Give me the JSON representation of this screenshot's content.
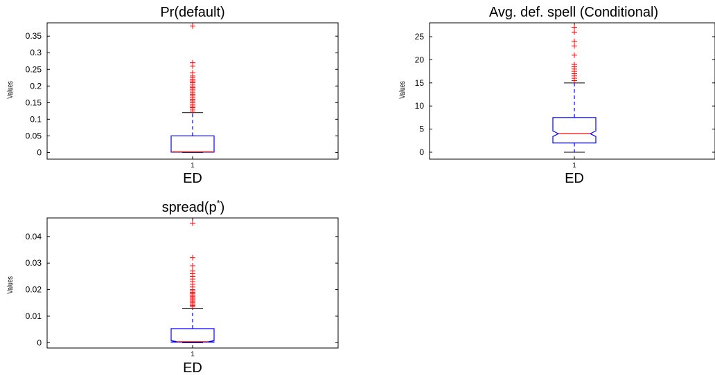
{
  "chart_data": [
    {
      "type": "box",
      "title": "Pr(default)",
      "ylabel": "Values",
      "xlabel": "ED",
      "categories": [
        "1"
      ],
      "ylim": [
        -0.02,
        0.39
      ],
      "yticks": [
        0,
        0.05,
        0.1,
        0.15,
        0.2,
        0.25,
        0.3,
        0.35
      ],
      "ytick_labels": [
        "0",
        "0.05",
        "0.1",
        "0.15",
        "0.2",
        "0.25",
        "0.3",
        "0.35"
      ],
      "notched": false,
      "box": {
        "whisker_low": 0,
        "q1": 0.001,
        "median": 0.002,
        "q3": 0.05,
        "whisker_high": 0.12
      },
      "outliers": [
        0.125,
        0.13,
        0.135,
        0.14,
        0.145,
        0.15,
        0.155,
        0.16,
        0.165,
        0.17,
        0.175,
        0.18,
        0.185,
        0.19,
        0.195,
        0.2,
        0.205,
        0.21,
        0.215,
        0.22,
        0.225,
        0.23,
        0.24,
        0.26,
        0.27,
        0.38
      ]
    },
    {
      "type": "box",
      "title": "Avg. def. spell (Conditional)",
      "ylabel": "Values",
      "xlabel": "ED",
      "categories": [
        "1"
      ],
      "ylim": [
        -1.5,
        28
      ],
      "yticks": [
        0,
        5,
        10,
        15,
        20,
        25
      ],
      "ytick_labels": [
        "0",
        "5",
        "10",
        "15",
        "20",
        "25"
      ],
      "notched": true,
      "box": {
        "whisker_low": 0,
        "q1": 2,
        "median": 4,
        "q3": 7.5,
        "whisker_high": 15,
        "notch_low": 3.4,
        "notch_high": 4.6
      },
      "outliers": [
        15.5,
        16,
        16.5,
        17,
        17.5,
        18,
        18.5,
        19,
        21,
        23,
        24,
        26,
        27
      ]
    },
    {
      "type": "box",
      "title": "spread(p*)",
      "title_base": "spread(p",
      "title_super": "*",
      "title_end": ")",
      "ylabel": "Values",
      "xlabel": "ED",
      "categories": [
        "1"
      ],
      "ylim": [
        -0.002,
        0.047
      ],
      "yticks": [
        0,
        0.01,
        0.02,
        0.03,
        0.04
      ],
      "ytick_labels": [
        "0",
        "0.01",
        "0.02",
        "0.03",
        "0.04"
      ],
      "notched": true,
      "box": {
        "whisker_low": 0,
        "q1": 0.0002,
        "median": 0.0004,
        "q3": 0.0053,
        "whisker_high": 0.013,
        "notch_low": 0.0003,
        "notch_high": 0.0008
      },
      "outliers": [
        0.0135,
        0.014,
        0.0145,
        0.015,
        0.0155,
        0.016,
        0.0165,
        0.017,
        0.0175,
        0.018,
        0.0185,
        0.019,
        0.0195,
        0.02,
        0.021,
        0.022,
        0.023,
        0.024,
        0.025,
        0.026,
        0.027,
        0.029,
        0.032,
        0.045
      ]
    }
  ],
  "colors": {
    "box": "#0000ff",
    "median": "#ff0000",
    "outlier": "#ff0000",
    "whisker": "#0000ff",
    "cap": "#000000",
    "axis": "#000000"
  }
}
